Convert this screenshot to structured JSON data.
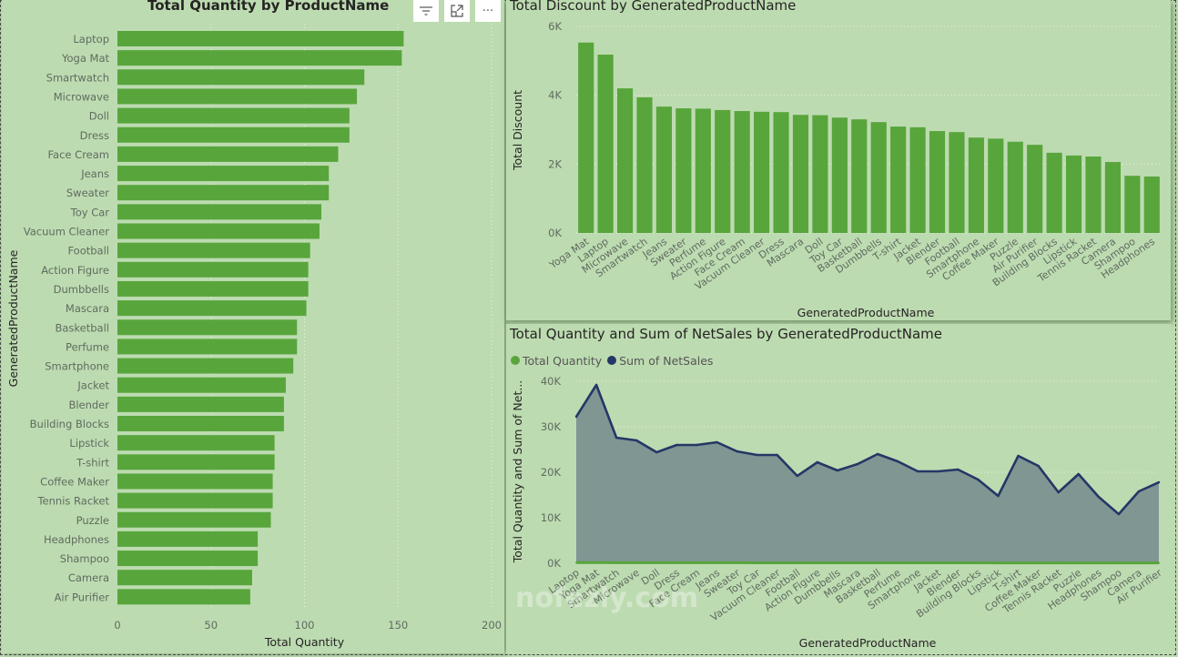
{
  "colors": {
    "background": "#bddbb1",
    "bar": "#58a53c",
    "line": "#243766",
    "area": "#7f9693",
    "axis_text": "#5f6b5f",
    "title": "#252423"
  },
  "visual_header": {
    "filter_icon": "filter-icon",
    "focus_icon": "focus-mode-icon",
    "more_icon": "more-options-icon",
    "more_label": "···"
  },
  "watermark": "nofezly.com",
  "chart_data": [
    {
      "id": "qty_by_product",
      "type": "bar",
      "orientation": "horizontal",
      "title": "Total Quantity by ProductName",
      "xlabel": "Total Quantity",
      "ylabel": "GeneratedProductName",
      "xlim": [
        0,
        200
      ],
      "xticks": [
        0,
        50,
        100,
        150,
        200
      ],
      "grid": true,
      "categories": [
        "Laptop",
        "Yoga Mat",
        "Smartwatch",
        "Microwave",
        "Doll",
        "Dress",
        "Face Cream",
        "Jeans",
        "Sweater",
        "Toy Car",
        "Vacuum Cleaner",
        "Football",
        "Action Figure",
        "Dumbbells",
        "Mascara",
        "Basketball",
        "Perfume",
        "Smartphone",
        "Jacket",
        "Blender",
        "Building Blocks",
        "Lipstick",
        "T-shirt",
        "Coffee Maker",
        "Tennis Racket",
        "Puzzle",
        "Headphones",
        "Shampoo",
        "Camera",
        "Air Purifier"
      ],
      "values": [
        153,
        152,
        132,
        128,
        124,
        124,
        118,
        113,
        113,
        109,
        108,
        103,
        102,
        102,
        101,
        96,
        96,
        94,
        90,
        89,
        89,
        84,
        84,
        83,
        83,
        82,
        75,
        75,
        72,
        71
      ]
    },
    {
      "id": "discount_by_product",
      "type": "bar",
      "orientation": "vertical",
      "title": "Total Discount by GeneratedProductName",
      "xlabel": "GeneratedProductName",
      "ylabel": "Total Discount",
      "ylim": [
        0,
        6000
      ],
      "yticks": [
        0,
        2000,
        4000,
        6000
      ],
      "ytick_labels": [
        "0K",
        "2K",
        "4K",
        "6K"
      ],
      "grid": true,
      "categories": [
        "Yoga Mat",
        "Laptop",
        "Microwave",
        "Smartwatch",
        "Jeans",
        "Sweater",
        "Perfume",
        "Action Figure",
        "Face Cream",
        "Vacuum Cleaner",
        "Dress",
        "Mascara",
        "Doll",
        "Toy Car",
        "Basketball",
        "Dumbbells",
        "T-shirt",
        "Jacket",
        "Blender",
        "Football",
        "Smartphone",
        "Coffee Maker",
        "Puzzle",
        "Air Purifier",
        "Building Blocks",
        "Lipstick",
        "Tennis Racket",
        "Camera",
        "Shampoo",
        "Headphones"
      ],
      "values": [
        5530,
        5180,
        4200,
        3940,
        3670,
        3620,
        3610,
        3570,
        3540,
        3520,
        3510,
        3430,
        3420,
        3350,
        3300,
        3220,
        3090,
        3070,
        2960,
        2930,
        2770,
        2740,
        2650,
        2560,
        2330,
        2250,
        2220,
        2060,
        1660,
        1640
      ]
    },
    {
      "id": "qty_netsales_by_product",
      "type": "area",
      "title": "Total Quantity and Sum of NetSales by GeneratedProductName",
      "xlabel": "GeneratedProductName",
      "ylabel": "Total Quantity and Sum of Net...",
      "ylim": [
        0,
        40000
      ],
      "yticks": [
        0,
        10000,
        20000,
        30000,
        40000
      ],
      "ytick_labels": [
        "0K",
        "10K",
        "20K",
        "30K",
        "40K"
      ],
      "grid": true,
      "legend": {
        "position": "top-left",
        "entries": [
          {
            "name": "Total Quantity",
            "color": "#58a53c"
          },
          {
            "name": "Sum of NetSales",
            "color": "#243766"
          }
        ]
      },
      "categories": [
        "Laptop",
        "Yoga Mat",
        "Smartwatch",
        "Microwave",
        "Doll",
        "Dress",
        "Face Cream",
        "Jeans",
        "Sweater",
        "Toy Car",
        "Vacuum Cleaner",
        "Football",
        "Action Figure",
        "Dumbbells",
        "Mascara",
        "Basketball",
        "Perfume",
        "Smartphone",
        "Jacket",
        "Blender",
        "Building Blocks",
        "Lipstick",
        "T-shirt",
        "Coffee Maker",
        "Tennis Racket",
        "Puzzle",
        "Headphones",
        "Shampoo",
        "Camera",
        "Air Purifier"
      ],
      "series": [
        {
          "name": "Total Quantity",
          "values": [
            153,
            152,
            132,
            128,
            124,
            124,
            118,
            113,
            113,
            109,
            108,
            103,
            102,
            102,
            101,
            96,
            96,
            94,
            90,
            89,
            89,
            84,
            84,
            83,
            83,
            82,
            75,
            75,
            72,
            71
          ]
        },
        {
          "name": "Sum of NetSales",
          "values": [
            32200,
            39200,
            27600,
            27000,
            24400,
            26000,
            26000,
            26600,
            24600,
            23800,
            23800,
            19200,
            22200,
            20400,
            21800,
            24000,
            22400,
            20200,
            20200,
            20600,
            18400,
            14800,
            23600,
            21400,
            15600,
            19600,
            14600,
            10800,
            15800,
            17800
          ]
        }
      ]
    }
  ]
}
